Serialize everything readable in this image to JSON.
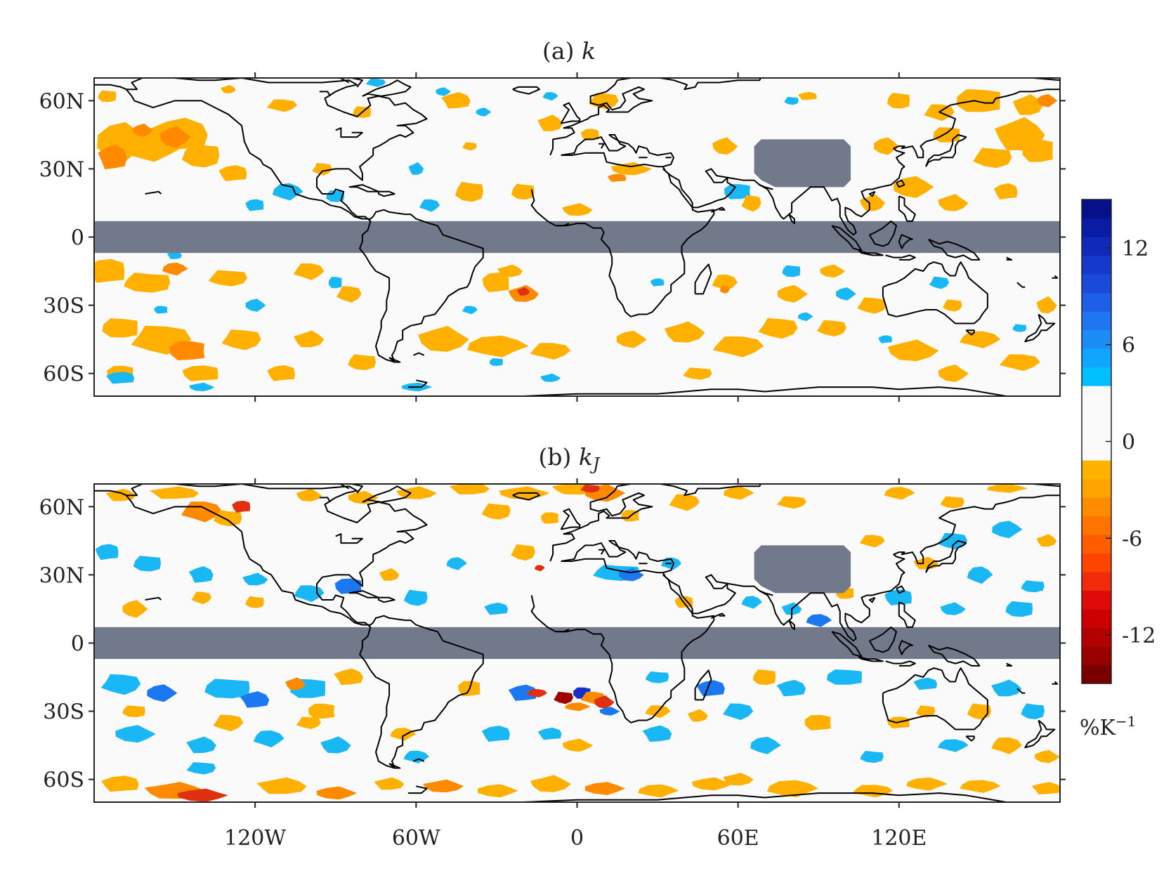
{
  "panels": [
    {
      "id": "a",
      "title_prefix": "(a) ",
      "title_var": "k",
      "title_sub": ""
    },
    {
      "id": "b",
      "title_prefix": "(b) ",
      "title_var": "k",
      "title_sub": "J"
    }
  ],
  "axes": {
    "lon_range": [
      -180,
      180
    ],
    "lat_range": [
      -70,
      70
    ],
    "x_ticks": [
      {
        "value": -120,
        "label": "120W"
      },
      {
        "value": -60,
        "label": "60W"
      },
      {
        "value": 0,
        "label": "0"
      },
      {
        "value": 60,
        "label": "60E"
      },
      {
        "value": 120,
        "label": "120E"
      }
    ],
    "y_ticks": [
      {
        "value": 60,
        "label": "60N"
      },
      {
        "value": 30,
        "label": "30N"
      },
      {
        "value": 0,
        "label": "0"
      },
      {
        "value": -30,
        "label": "30S"
      },
      {
        "value": -60,
        "label": "60S"
      }
    ]
  },
  "masked": {
    "color": "#72798A",
    "equatorial_band_lat": [
      -7,
      7
    ],
    "tibet_box_lon": [
      66,
      102
    ],
    "tibet_box_lat": [
      22,
      43
    ]
  },
  "colorbar": {
    "range": [
      -15,
      15
    ],
    "tick_labels": [
      {
        "value": 12,
        "label": "12"
      },
      {
        "value": 6,
        "label": "6"
      },
      {
        "value": 0,
        "label": "0"
      },
      {
        "value": -6,
        "label": "-6"
      },
      {
        "value": -12,
        "label": "-12"
      }
    ],
    "colors_bottom_to_top": [
      "#7a0000",
      "#990000",
      "#b30000",
      "#cc0000",
      "#e00a0a",
      "#f22b0c",
      "#ff4400",
      "#ff5c00",
      "#ff7400",
      "#ff8c00",
      "#ffa400",
      "#ffb300",
      "#fafafa",
      "#fafafa",
      "#fafafa",
      "#fafafa",
      "#00bfff",
      "#10a6ff",
      "#1c8df5",
      "#2075f0",
      "#1f5ee6",
      "#1a4ad9",
      "#1539cc",
      "#1029b8",
      "#0a1ca3",
      "#05108a"
    ],
    "unit_label": "%K",
    "unit_exponent": "−1"
  },
  "colors": {
    "pos_light": "#1AB7F5",
    "pos_mid": "#1C78F0",
    "pos_dark": "#1530C8",
    "neg_light": "#FFB000",
    "neg_mid": "#FF8A00",
    "neg_dark": "#E03010",
    "neg_darkest": "#A00000",
    "background": "#FAFAFA",
    "coast": "#000000"
  }
}
